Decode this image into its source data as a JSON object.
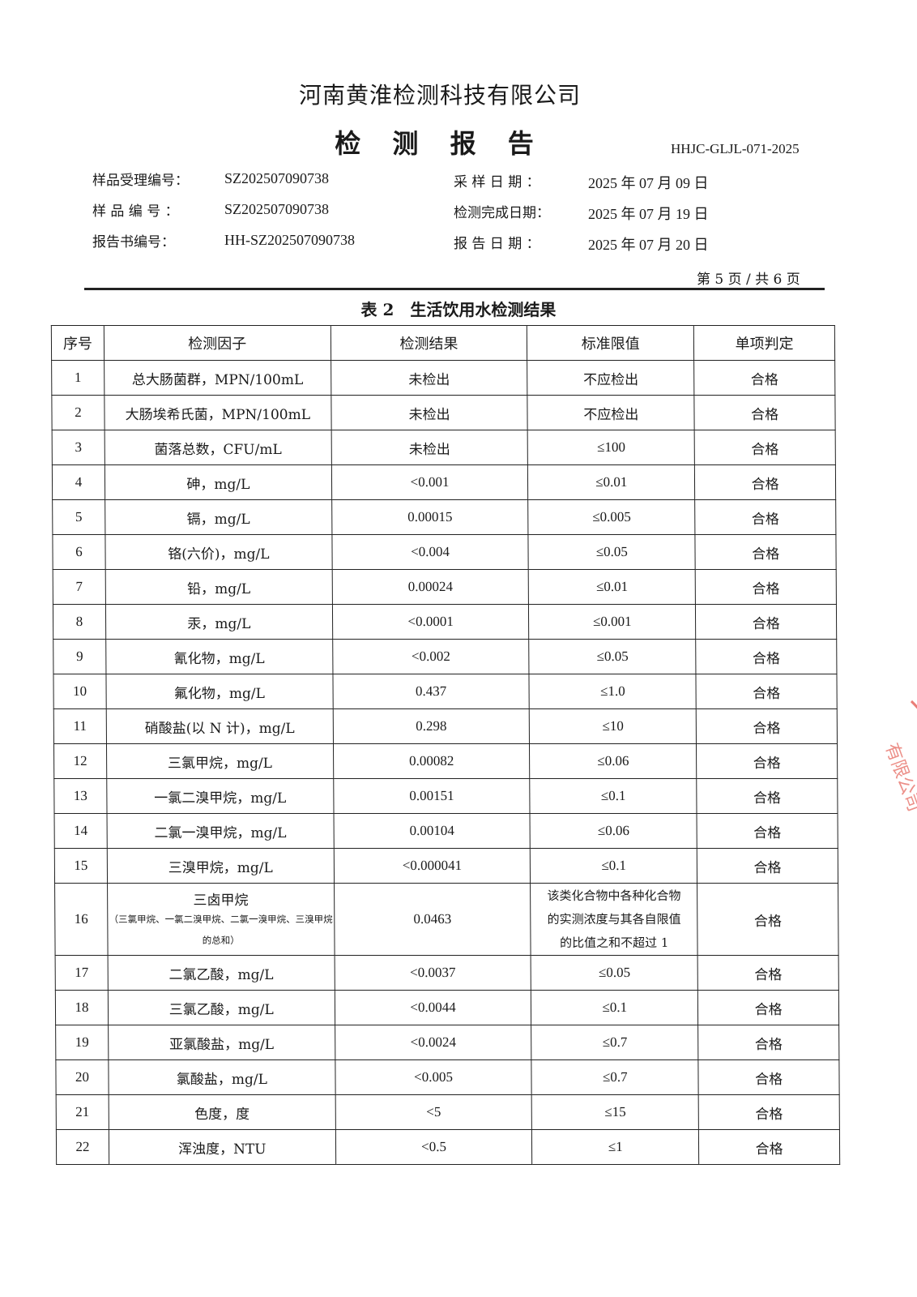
{
  "company": "河南黄淮检测科技有限公司",
  "title": "检 测 报 告",
  "report_code": "HHJC-GLJL-071-2025",
  "meta": {
    "sample_accept_no_label": "样品受理编号：",
    "sample_accept_no": "SZ202507090738",
    "sample_no_label": "样 品 编 号 ：",
    "sample_no": "SZ202507090738",
    "report_no_label": "报告书编号：",
    "report_no": "HH-SZ202507090738",
    "sampling_date_label": "采 样 日 期 ：",
    "sampling_date": "2025 年 07 月 09 日",
    "test_done_label": "检测完成日期：",
    "test_done": "2025 年 07 月 19 日",
    "report_date_label": "报 告 日 期 ：",
    "report_date": "2025 年 07 月 20 日"
  },
  "page_no": "第 5 页 / 共 6 页",
  "table_caption": "表 2　生活饮用水检测结果",
  "headers": [
    "序号",
    "检测因子",
    "检测结果",
    "标准限值",
    "单项判定"
  ],
  "rows": [
    [
      "1",
      "总大肠菌群，MPN/100mL",
      "未检出",
      "不应检出",
      "合格"
    ],
    [
      "2",
      "大肠埃希氏菌，MPN/100mL",
      "未检出",
      "不应检出",
      "合格"
    ],
    [
      "3",
      "菌落总数，CFU/mL",
      "未检出",
      "≤100",
      "合格"
    ],
    [
      "4",
      "砷，mg/L",
      "<0.001",
      "≤0.01",
      "合格"
    ],
    [
      "5",
      "镉，mg/L",
      "0.00015",
      "≤0.005",
      "合格"
    ],
    [
      "6",
      "铬(六价)，mg/L",
      "<0.004",
      "≤0.05",
      "合格"
    ],
    [
      "7",
      "铅，mg/L",
      "0.00024",
      "≤0.01",
      "合格"
    ],
    [
      "8",
      "汞，mg/L",
      "<0.0001",
      "≤0.001",
      "合格"
    ],
    [
      "9",
      "氰化物，mg/L",
      "<0.002",
      "≤0.05",
      "合格"
    ],
    [
      "10",
      "氟化物，mg/L",
      "0.437",
      "≤1.0",
      "合格"
    ],
    [
      "11",
      "硝酸盐(以 N 计)，mg/L",
      "0.298",
      "≤10",
      "合格"
    ],
    [
      "12",
      "三氯甲烷，mg/L",
      "0.00082",
      "≤0.06",
      "合格"
    ],
    [
      "13",
      "一氯二溴甲烷，mg/L",
      "0.00151",
      "≤0.1",
      "合格"
    ],
    [
      "14",
      "二氯一溴甲烷，mg/L",
      "0.00104",
      "≤0.06",
      "合格"
    ],
    [
      "15",
      "三溴甲烷，mg/L",
      "<0.000041",
      "≤0.1",
      "合格"
    ],
    [
      "16",
      "三卤甲烷",
      "0.0463",
      "该类化合物中各种化合物的实测浓度与其各自限值的比值之和不超过 1",
      "合格"
    ],
    [
      "17",
      "二氯乙酸，mg/L",
      "<0.0037",
      "≤0.05",
      "合格"
    ],
    [
      "18",
      "三氯乙酸，mg/L",
      "<0.0044",
      "≤0.1",
      "合格"
    ],
    [
      "19",
      "亚氯酸盐，mg/L",
      "<0.0024",
      "≤0.7",
      "合格"
    ],
    [
      "20",
      "氯酸盐，mg/L",
      "<0.005",
      "≤0.7",
      "合格"
    ],
    [
      "21",
      "色度，度",
      "<5",
      "≤15",
      "合格"
    ],
    [
      "22",
      "浑浊度，NTU",
      "<0.5",
      "≤1",
      "合格"
    ]
  ],
  "row16_note": "（三氯甲烷、一氯二溴甲烷、二氯一溴甲烷、三溴甲烷的总和）",
  "row16_limit_lines": [
    "该类化合物中各种化合物",
    "的实测浓度与其各自限值",
    "的比值之和不超过 1"
  ],
  "stamp_text": "有限公司",
  "stamp_color": "#e0453a"
}
